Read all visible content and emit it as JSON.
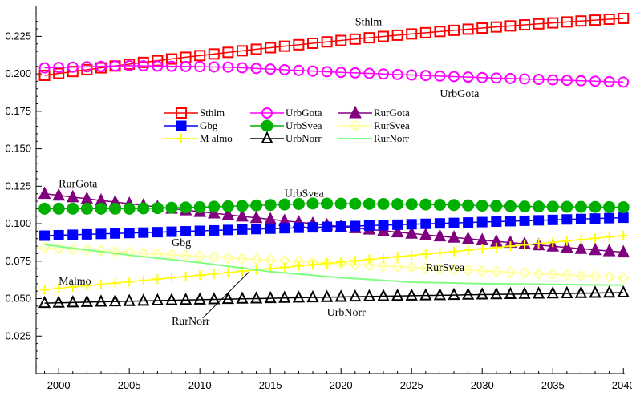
{
  "chart_data": {
    "type": "line",
    "title": "",
    "xlabel": "",
    "ylabel": "",
    "xlim": [
      1998.4,
      2040.1
    ],
    "ylim": [
      0.0,
      0.245
    ],
    "x_ticks": [
      2000,
      2005,
      2010,
      2015,
      2020,
      2025,
      2030,
      2035,
      2040
    ],
    "x_tick_labels": [
      "2000",
      "2005",
      "2010",
      "2015",
      "2020",
      "2025",
      "2030",
      "2035",
      "2040"
    ],
    "y_ticks": [
      0.025,
      0.05,
      0.075,
      0.1,
      0.125,
      0.15,
      0.175,
      0.2,
      0.225
    ],
    "y_tick_labels": [
      "0.025",
      "0.050",
      "0.075",
      "0.100",
      "0.125",
      "0.150",
      "0.175",
      "0.200",
      "0.225"
    ],
    "grid": false,
    "legend_position": "center-left",
    "legend_order": [
      "Sthlm",
      "Gbg",
      "Malmo",
      "UrbGota",
      "UrbSvea",
      "UrbNorr",
      "RurGota",
      "RurSvea",
      "RurNorr"
    ],
    "legend_labels": {
      "Sthlm": "Sthlm",
      "Gbg": "Gbg",
      "Malmo": "M almo",
      "UrbGota": "UrbGota",
      "UrbSvea": "UrbSvea",
      "UrbNorr": "UrbNorr",
      "RurGota": "RurGota",
      "RurSvea": "RurSvea",
      "RurNorr": "RurNorr"
    },
    "x_start": 1999,
    "x_end": 2040,
    "series": [
      {
        "name": "Sthlm",
        "color": "#ff0000",
        "marker": "open-square",
        "start": 0.199,
        "end": 0.237,
        "curve": 0.6
      },
      {
        "name": "UrbGota",
        "color": "#ff00ff",
        "marker": "open-circle",
        "points": [
          [
            1999,
            0.204
          ],
          [
            2005,
            0.2055
          ],
          [
            2012,
            0.2045
          ],
          [
            2020,
            0.201
          ],
          [
            2030,
            0.1975
          ],
          [
            2040,
            0.1945
          ]
        ]
      },
      {
        "name": "RurGota",
        "color": "#800080",
        "marker": "filled-triangle",
        "start": 0.12,
        "end": 0.081,
        "curve": 0.8
      },
      {
        "name": "Gbg",
        "color": "#0000ff",
        "marker": "filled-square",
        "start": 0.092,
        "end": 0.104,
        "curve": 1.0
      },
      {
        "name": "UrbSvea",
        "color": "#00b000",
        "marker": "filled-circle",
        "points": [
          [
            1999,
            0.11
          ],
          [
            2005,
            0.11
          ],
          [
            2010,
            0.111
          ],
          [
            2015,
            0.1125
          ],
          [
            2018,
            0.1135
          ],
          [
            2025,
            0.113
          ],
          [
            2033,
            0.1115
          ],
          [
            2040,
            0.111
          ]
        ]
      },
      {
        "name": "RurSvea",
        "color": "#ffff99",
        "marker": "open-diamond",
        "start": 0.084,
        "end": 0.064,
        "curve": 0.9
      },
      {
        "name": "Malmo",
        "color": "#ffff00",
        "marker": "plus",
        "start": 0.056,
        "end": 0.092,
        "curve": 1.0
      },
      {
        "name": "UrbNorr",
        "color": "#000000",
        "marker": "open-triangle",
        "start": 0.047,
        "end": 0.054,
        "curve": 0.7
      },
      {
        "name": "RurNorr",
        "color": "#80ff80",
        "marker": "none",
        "points": [
          [
            1999,
            0.086
          ],
          [
            2005,
            0.079
          ],
          [
            2010,
            0.074
          ],
          [
            2015,
            0.068
          ],
          [
            2020,
            0.064
          ],
          [
            2025,
            0.061
          ],
          [
            2030,
            0.06
          ],
          [
            2040,
            0.059
          ]
        ]
      }
    ],
    "annotations": [
      {
        "text": "Sthlm",
        "x": 2021,
        "y": 0.2325
      },
      {
        "text": "UrbGota",
        "x": 2027,
        "y": 0.1845
      },
      {
        "text": "RurGota",
        "x": 2000,
        "y": 0.1245
      },
      {
        "text": "UrbSvea",
        "x": 2016,
        "y": 0.118
      },
      {
        "text": "Gbg",
        "x": 2008,
        "y": 0.085
      },
      {
        "text": "RurSvea",
        "x": 2026,
        "y": 0.0685
      },
      {
        "text": "Malmo",
        "x": 2000,
        "y": 0.0595
      },
      {
        "text": "RurNorr",
        "x": 2008,
        "y": 0.0325
      },
      {
        "text": "UrbNorr",
        "x": 2019,
        "y": 0.0385
      }
    ]
  }
}
